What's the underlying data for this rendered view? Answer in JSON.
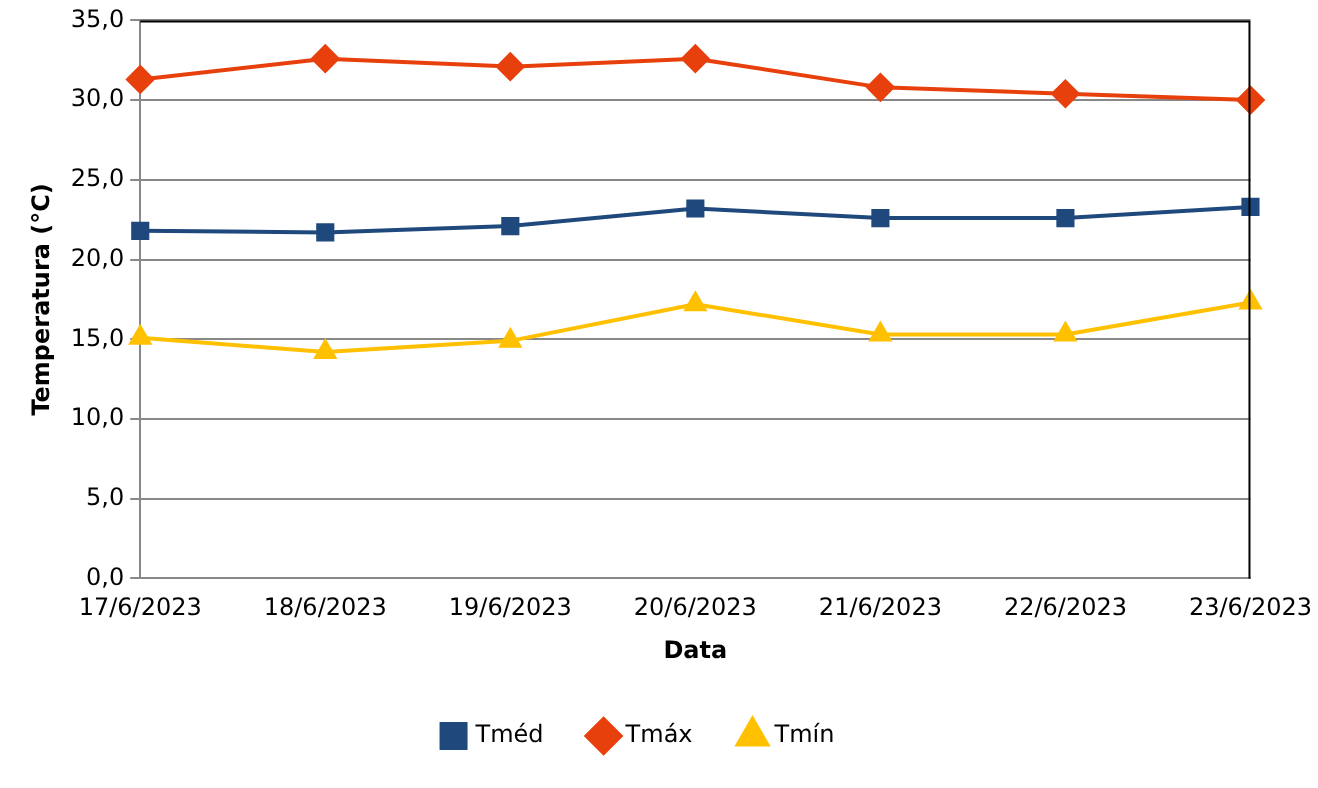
{
  "chart_data": {
    "type": "line",
    "xlabel": "Data",
    "ylabel": "Temperatura (°C)",
    "categories": [
      "17/6/2023",
      "18/6/2023",
      "19/6/2023",
      "20/6/2023",
      "21/6/2023",
      "22/6/2023",
      "23/6/2023"
    ],
    "series": [
      {
        "name": "Tméd",
        "color": "#1f497d",
        "marker": "square",
        "values": [
          21.8,
          21.7,
          22.1,
          23.2,
          22.6,
          22.6,
          23.3
        ]
      },
      {
        "name": "Tmáx",
        "color": "#e8400c",
        "marker": "diamond",
        "values": [
          31.3,
          32.6,
          32.1,
          32.6,
          30.8,
          30.4,
          30.0
        ]
      },
      {
        "name": "Tmín",
        "color": "#ffc000",
        "marker": "triangle",
        "values": [
          15.1,
          14.2,
          14.9,
          17.2,
          15.3,
          15.3,
          17.3
        ]
      }
    ],
    "ylim": [
      0,
      35
    ],
    "yticks": [
      {
        "value": 0,
        "label": "0,0"
      },
      {
        "value": 5,
        "label": "5,0"
      },
      {
        "value": 10,
        "label": "10,0"
      },
      {
        "value": 15,
        "label": "15,0"
      },
      {
        "value": 20,
        "label": "20,0"
      },
      {
        "value": 25,
        "label": "25,0"
      },
      {
        "value": 30,
        "label": "30,0"
      },
      {
        "value": 35,
        "label": "35,0"
      }
    ],
    "grid": "y",
    "legend": "bottom",
    "line_style": "solid"
  }
}
